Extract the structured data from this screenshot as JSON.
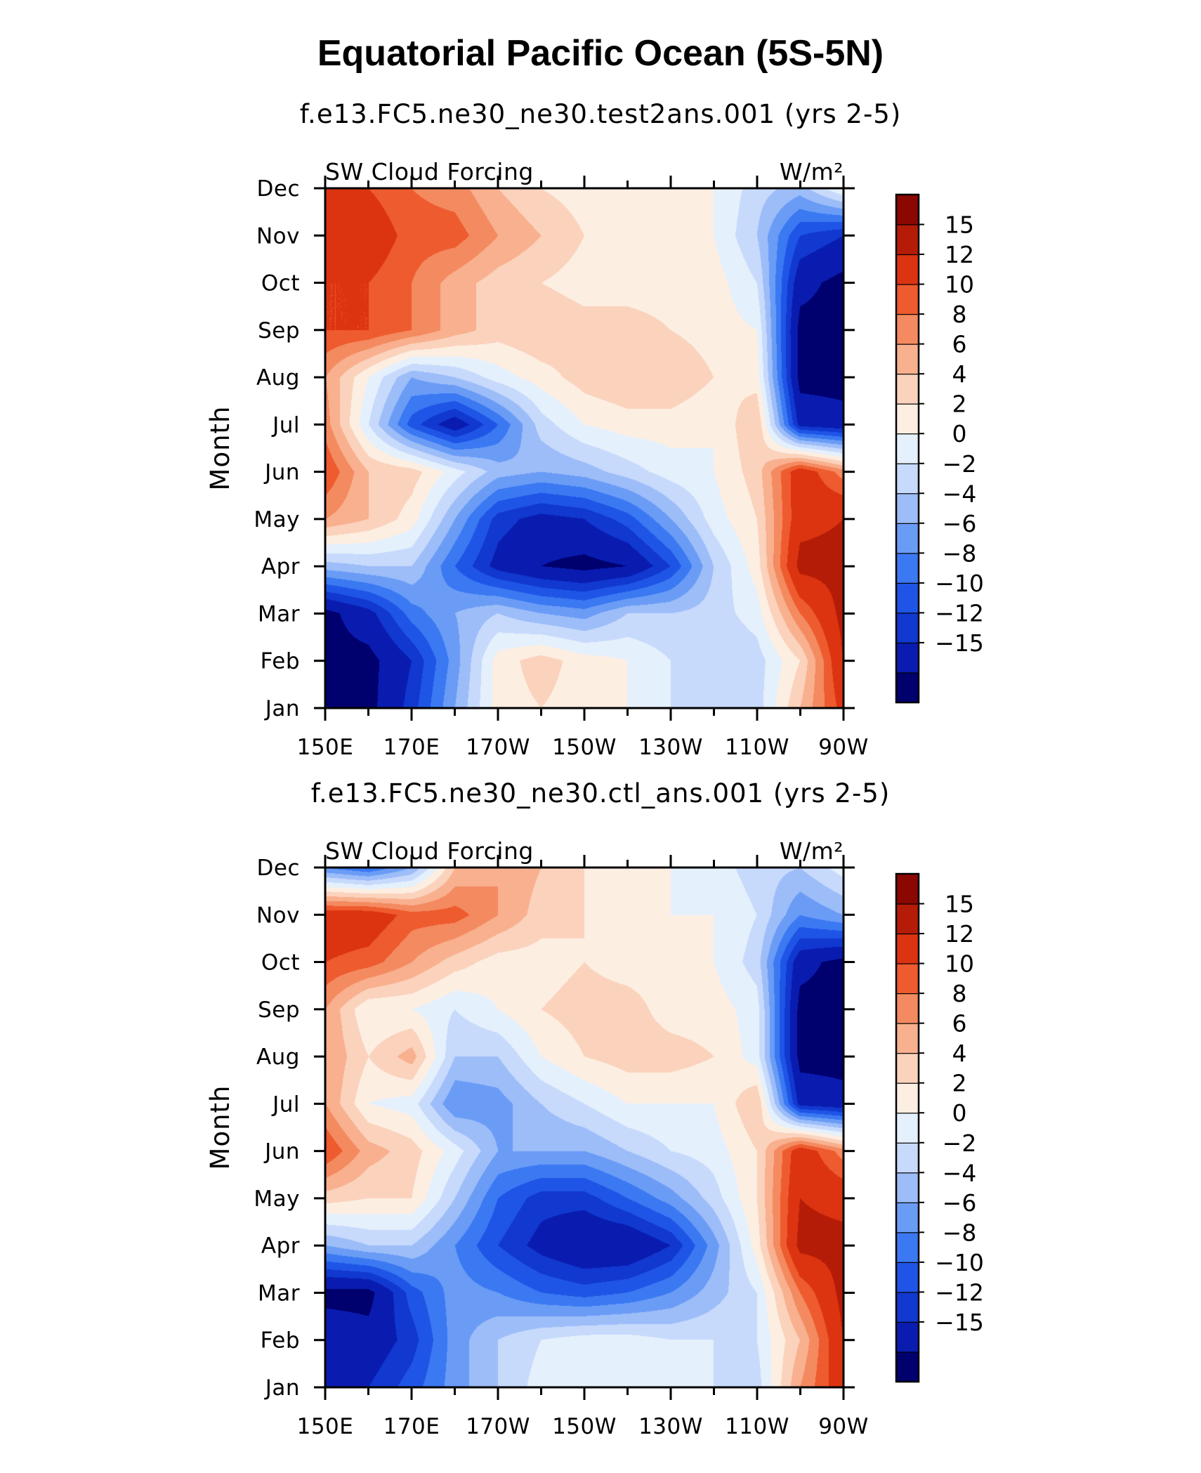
{
  "title": "Equatorial Pacific Ocean (5S-5N)",
  "colors": {
    "scale": [
      "#00006e",
      "#0a1cb0",
      "#1138cf",
      "#1f55e6",
      "#3b79f2",
      "#6a9cf6",
      "#9dbdf9",
      "#c7dafc",
      "#e5f0fd",
      "#fdeee2",
      "#fbd2bc",
      "#f8b08e",
      "#f48a60",
      "#ee5b2e",
      "#dc3411",
      "#b51c07",
      "#8a0702"
    ],
    "levels": [
      -15,
      -12,
      -10,
      -8,
      -6,
      -4,
      -2,
      0,
      2,
      4,
      6,
      8,
      10,
      12,
      15
    ]
  },
  "chart_data": [
    {
      "type": "heatmap",
      "title": "f.e13.FC5.ne30_ne30.test2ans.001 (yrs 2-5)",
      "left_label": "SW Cloud Forcing",
      "right_label": "W/m²",
      "ylabel": "Month",
      "x_ticks": [
        "150E",
        "170E",
        "170W",
        "150W",
        "130W",
        "110W",
        "90W"
      ],
      "y_ticks": [
        "Jan",
        "Feb",
        "Mar",
        "Apr",
        "May",
        "Jun",
        "Jul",
        "Aug",
        "Sep",
        "Oct",
        "Nov",
        "Dec"
      ],
      "colorbar_labels": [
        "15",
        "12",
        "10",
        "8",
        "6",
        "4",
        "2",
        "0",
        "−2",
        "−4",
        "−6",
        "−8",
        "−10",
        "−12",
        "−15"
      ],
      "x_lon": [
        150,
        160,
        170,
        180,
        190,
        200,
        210,
        220,
        230,
        240,
        250,
        260,
        270
      ],
      "z": [
        [
          -16,
          -16,
          -11,
          -4,
          3,
          4,
          3,
          2,
          0,
          -1,
          -1,
          6,
          13
        ],
        [
          -16,
          -16,
          -12,
          -5,
          3,
          5,
          3,
          2,
          0,
          -2,
          -1,
          4,
          15
        ],
        [
          -16,
          -13,
          -7,
          -4,
          -2,
          -4,
          -5,
          -2,
          -2,
          -1,
          1,
          10,
          16
        ],
        [
          -3,
          -2,
          -2,
          -8,
          -13,
          -15,
          -16,
          -15,
          -10,
          -2,
          3,
          16,
          16
        ],
        [
          8,
          6,
          3,
          -4,
          -11,
          -13,
          -12,
          -9,
          -4,
          1,
          4,
          14,
          15
        ],
        [
          12,
          6,
          5,
          1,
          -3,
          -4,
          -3,
          -1,
          1,
          2,
          5,
          14,
          9
        ],
        [
          9,
          0,
          -9,
          -14,
          -8,
          -1,
          2,
          3,
          3,
          2,
          6,
          -13,
          -14
        ],
        [
          8,
          2,
          -4,
          -2,
          1,
          3,
          5,
          6,
          6,
          4,
          3,
          -16,
          -16
        ],
        [
          12,
          12,
          10,
          7,
          5,
          6,
          5,
          5,
          4,
          3,
          2,
          -16,
          -16
        ],
        [
          12,
          12,
          10,
          7,
          5,
          4,
          3,
          3,
          3,
          3,
          0,
          -14,
          -16
        ],
        [
          15,
          14,
          11,
          11,
          8,
          6,
          4,
          3,
          3,
          2,
          -2,
          -10,
          -12
        ],
        [
          12,
          12,
          10,
          9,
          6,
          4,
          3,
          2,
          2,
          2,
          -1,
          -3,
          2
        ]
      ]
    },
    {
      "type": "heatmap",
      "title": "f.e13.FC5.ne30_ne30.ctl_ans.001 (yrs 2-5)",
      "left_label": "SW Cloud Forcing",
      "right_label": "W/m²",
      "ylabel": "Month",
      "x_ticks": [
        "150E",
        "170E",
        "170W",
        "150W",
        "130W",
        "110W",
        "90W"
      ],
      "y_ticks": [
        "Jan",
        "Feb",
        "Mar",
        "Apr",
        "May",
        "Jun",
        "Jul",
        "Aug",
        "Sep",
        "Oct",
        "Nov",
        "Dec"
      ],
      "colorbar_labels": [
        "15",
        "12",
        "10",
        "8",
        "6",
        "4",
        "2",
        "0",
        "−2",
        "−4",
        "−6",
        "−8",
        "−10",
        "−12",
        "−15"
      ],
      "x_lon": [
        150,
        160,
        170,
        180,
        190,
        200,
        210,
        220,
        230,
        240,
        250,
        260,
        270
      ],
      "z": [
        [
          -12,
          -12,
          -9,
          -5,
          -2,
          1,
          2,
          2,
          1,
          0,
          -1,
          8,
          14
        ],
        [
          -13,
          -14,
          -11,
          -5,
          -2,
          0,
          1,
          1,
          0,
          0,
          0,
          6,
          15
        ],
        [
          -16,
          -16,
          -9,
          -5,
          -6,
          -8,
          -9,
          -8,
          -6,
          -3,
          0,
          10,
          16
        ],
        [
          -4,
          -2,
          -2,
          -6,
          -10,
          -13,
          -15,
          -15,
          -12,
          -5,
          3,
          16,
          16
        ],
        [
          5,
          4,
          4,
          -2,
          -8,
          -11,
          -11,
          -8,
          -5,
          -1,
          4,
          15,
          14
        ],
        [
          12,
          7,
          5,
          1,
          -4,
          -4,
          -4,
          -2,
          0,
          1,
          4,
          14,
          9
        ],
        [
          8,
          2,
          1,
          -6,
          -5,
          -2,
          0,
          2,
          2,
          2,
          6,
          -13,
          -14
        ],
        [
          8,
          4,
          7,
          -2,
          -2,
          2,
          4,
          5,
          5,
          4,
          1,
          -16,
          -16
        ],
        [
          8,
          2,
          2,
          0,
          2,
          4,
          5,
          5,
          3,
          3,
          1,
          -16,
          -16
        ],
        [
          12,
          11,
          8,
          5,
          3,
          3,
          4,
          3,
          3,
          2,
          -1,
          -14,
          -16
        ],
        [
          14,
          14,
          11,
          11,
          8,
          5,
          4,
          3,
          2,
          2,
          0,
          -6,
          -4
        ],
        [
          -6,
          -8,
          -4,
          6,
          8,
          6,
          4,
          3,
          2,
          1,
          -1,
          -2,
          1
        ]
      ]
    }
  ]
}
